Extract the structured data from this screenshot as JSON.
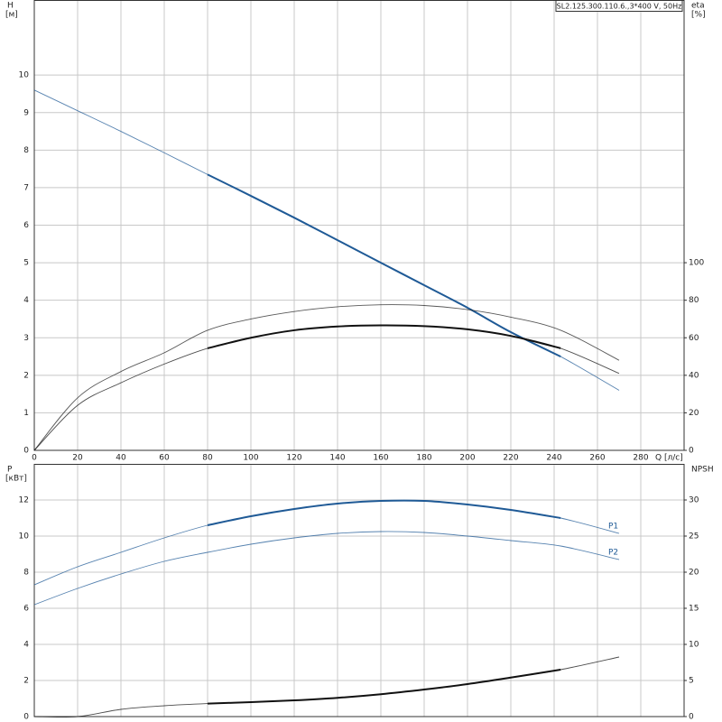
{
  "chart_data": [
    {
      "type": "line",
      "title": "SL2.125.300.110.6.,3*400 V, 50Hz",
      "xlabel": "Q [л/с]",
      "ylabel": "H",
      "yunit": "[м]",
      "y2label": "eta",
      "y2unit": "[%]",
      "xlim": [
        0,
        300
      ],
      "xticks": [
        0,
        20,
        40,
        60,
        80,
        100,
        120,
        140,
        160,
        180,
        200,
        220,
        240,
        260,
        280
      ],
      "ylim": [
        0,
        12
      ],
      "yticks": [
        0,
        1,
        2,
        3,
        4,
        5,
        6,
        7,
        8,
        9,
        10
      ],
      "y2lim": [
        0,
        240
      ],
      "y2ticks": [
        0,
        20,
        40,
        60,
        80,
        100
      ],
      "grid": true,
      "series": [
        {
          "color": "#1f5a96",
          "thick_xlim": [
            80,
            243
          ],
          "x": [
            0,
            20,
            40,
            60,
            80,
            100,
            120,
            140,
            160,
            180,
            200,
            220,
            243,
            270
          ],
          "values": [
            9.6,
            9.05,
            8.5,
            7.93,
            7.35,
            6.78,
            6.2,
            5.6,
            5.0,
            4.4,
            3.8,
            3.15,
            2.5,
            1.6
          ]
        },
        {
          "color": "#222222",
          "axis": "y2",
          "x": [
            0,
            20,
            40,
            60,
            80,
            100,
            120,
            140,
            160,
            180,
            200,
            220,
            243,
            270
          ],
          "values": [
            0,
            28,
            42,
            52,
            64,
            70,
            74,
            76.5,
            77.6,
            77.2,
            75,
            71,
            64,
            48
          ]
        },
        {
          "color": "#111111",
          "axis": "y2",
          "thick_xlim": [
            80,
            243
          ],
          "x": [
            0,
            20,
            40,
            60,
            80,
            100,
            120,
            140,
            160,
            180,
            200,
            220,
            243,
            270
          ],
          "values": [
            0,
            24,
            36,
            46,
            54.4,
            60,
            64,
            66,
            66.6,
            66.2,
            64.5,
            61,
            54.4,
            41
          ]
        }
      ]
    },
    {
      "type": "line",
      "ylabel": "P",
      "yunit": "[кВт]",
      "y2label": "NPSH",
      "xlim": [
        0,
        300
      ],
      "xticks": [
        0,
        20,
        40,
        60,
        80,
        100,
        120,
        140,
        160,
        180,
        200,
        220,
        240,
        260,
        280
      ],
      "ylim": [
        0,
        14
      ],
      "yticks": [
        0,
        2,
        4,
        6,
        8,
        10,
        12
      ],
      "y2lim": [
        0,
        35
      ],
      "y2ticks": [
        0,
        5,
        10,
        15,
        20,
        25,
        30
      ],
      "grid": true,
      "series": [
        {
          "name": "P1",
          "color": "#1f5a96",
          "thick_xlim": [
            80,
            243
          ],
          "x": [
            0,
            20,
            40,
            60,
            80,
            100,
            120,
            140,
            160,
            180,
            200,
            220,
            243,
            270
          ],
          "values": [
            7.3,
            8.3,
            9.1,
            9.9,
            10.6,
            11.1,
            11.5,
            11.8,
            11.95,
            11.95,
            11.75,
            11.45,
            11.0,
            10.15
          ]
        },
        {
          "name": "P2",
          "color": "#1f5a96",
          "x": [
            0,
            20,
            40,
            60,
            80,
            100,
            120,
            140,
            160,
            180,
            200,
            220,
            243,
            270
          ],
          "values": [
            6.2,
            7.1,
            7.9,
            8.6,
            9.1,
            9.55,
            9.9,
            10.15,
            10.25,
            10.2,
            10.0,
            9.75,
            9.45,
            8.7
          ]
        },
        {
          "color": "#111111",
          "axis": "y2",
          "thick_xlim": [
            80,
            243
          ],
          "x": [
            0,
            20,
            40,
            60,
            80,
            100,
            120,
            140,
            160,
            180,
            200,
            220,
            243,
            270
          ],
          "values": [
            0,
            0,
            1,
            1.5,
            1.8,
            2,
            2.25,
            2.6,
            3.1,
            3.75,
            4.5,
            5.4,
            6.5,
            8.25
          ]
        }
      ]
    }
  ]
}
